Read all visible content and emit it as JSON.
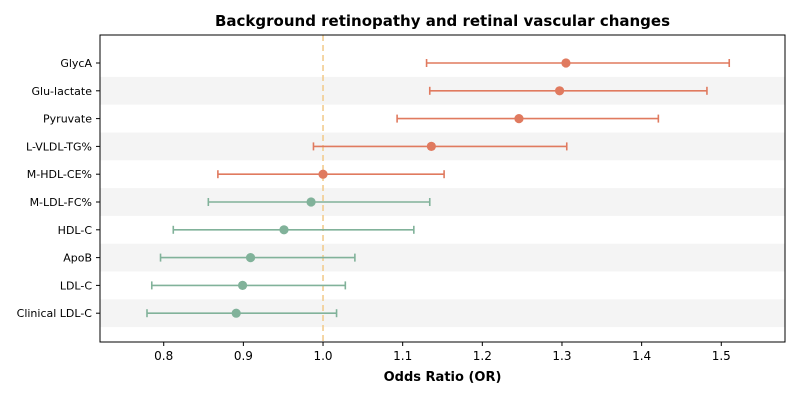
{
  "chart_data": {
    "type": "forest",
    "title": "Background retinopathy and retinal vascular changes",
    "xlabel": "Odds Ratio (OR)",
    "xlim": [
      0.72,
      1.58
    ],
    "xticks": [
      "0.8",
      "0.9",
      "1.0",
      "1.1",
      "1.2",
      "1.3",
      "1.4",
      "1.5"
    ],
    "reference_line": 1.0,
    "row_shading": "alternating light gray",
    "colors": {
      "increase": "#e07a5f",
      "decrease": "#81b29a",
      "reference": "#f2cc8f",
      "band": "#f4f4f4"
    },
    "rows": [
      {
        "label": "GlycA",
        "or": 1.305,
        "lower": 1.13,
        "upper": 1.51,
        "color": "increase"
      },
      {
        "label": "Glu-lactate",
        "or": 1.297,
        "lower": 1.134,
        "upper": 1.482,
        "color": "increase"
      },
      {
        "label": "Pyruvate",
        "or": 1.246,
        "lower": 1.093,
        "upper": 1.421,
        "color": "increase"
      },
      {
        "label": "L-VLDL-TG%",
        "or": 1.136,
        "lower": 0.988,
        "upper": 1.306,
        "color": "increase"
      },
      {
        "label": "M-HDL-CE%",
        "or": 1.0,
        "lower": 0.868,
        "upper": 1.152,
        "color": "increase"
      },
      {
        "label": "M-LDL-FC%",
        "or": 0.985,
        "lower": 0.856,
        "upper": 1.134,
        "color": "decrease"
      },
      {
        "label": "HDL-C",
        "or": 0.951,
        "lower": 0.812,
        "upper": 1.114,
        "color": "decrease"
      },
      {
        "label": "ApoB",
        "or": 0.909,
        "lower": 0.796,
        "upper": 1.04,
        "color": "decrease"
      },
      {
        "label": "LDL-C",
        "or": 0.899,
        "lower": 0.785,
        "upper": 1.028,
        "color": "decrease"
      },
      {
        "label": "Clinical LDL-C",
        "or": 0.891,
        "lower": 0.779,
        "upper": 1.017,
        "color": "decrease"
      }
    ]
  }
}
